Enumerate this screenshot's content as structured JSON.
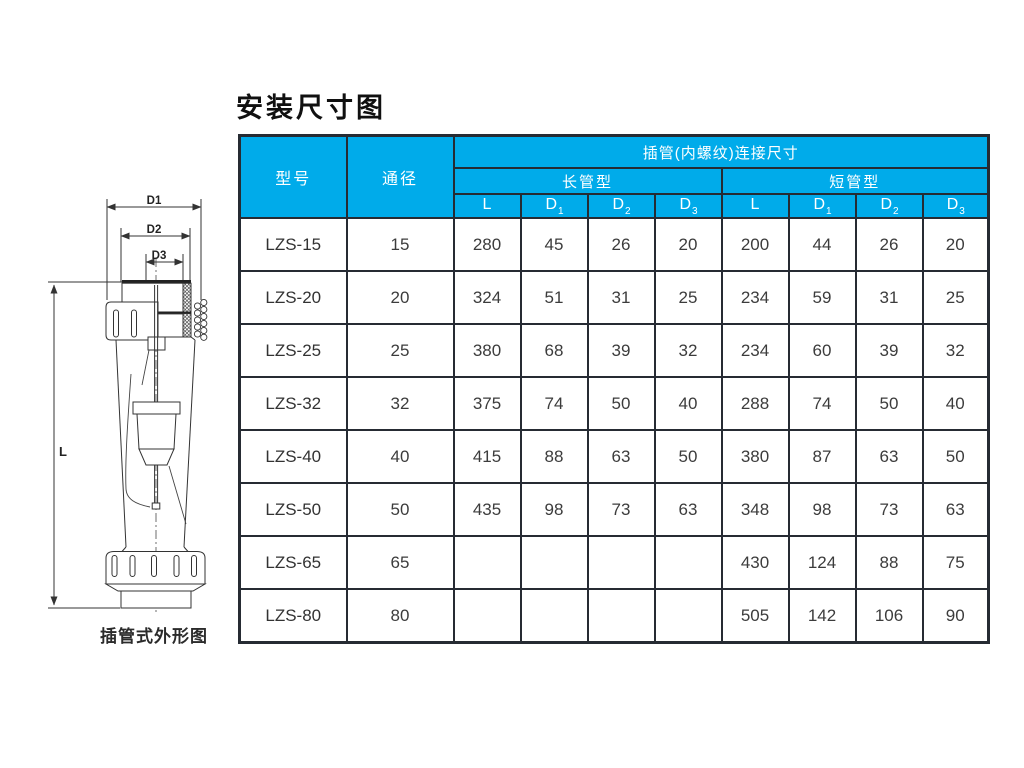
{
  "page": {
    "title": "安装尺寸图"
  },
  "drawing": {
    "caption": "插管式外形图",
    "dim_labels": {
      "d1": "D1",
      "d2": "D2",
      "d3": "D3",
      "length": "L"
    }
  },
  "table": {
    "header": {
      "model": "型号",
      "diameter": "通径",
      "group": "插管(内螺纹)连接尺寸",
      "long_type": "长管型",
      "short_type": "短管型",
      "dim_cols": [
        {
          "base": "L",
          "sub": ""
        },
        {
          "base": "D",
          "sub": "1"
        },
        {
          "base": "D",
          "sub": "2"
        },
        {
          "base": "D",
          "sub": "3"
        },
        {
          "base": "L",
          "sub": ""
        },
        {
          "base": "D",
          "sub": "1"
        },
        {
          "base": "D",
          "sub": "2"
        },
        {
          "base": "D",
          "sub": "3"
        }
      ]
    },
    "rows": [
      {
        "model": "LZS-15",
        "dn": "15",
        "long": [
          "280",
          "45",
          "26",
          "20"
        ],
        "short": [
          "200",
          "44",
          "26",
          "20"
        ]
      },
      {
        "model": "LZS-20",
        "dn": "20",
        "long": [
          "324",
          "51",
          "31",
          "25"
        ],
        "short": [
          "234",
          "59",
          "31",
          "25"
        ]
      },
      {
        "model": "LZS-25",
        "dn": "25",
        "long": [
          "380",
          "68",
          "39",
          "32"
        ],
        "short": [
          "234",
          "60",
          "39",
          "32"
        ]
      },
      {
        "model": "LZS-32",
        "dn": "32",
        "long": [
          "375",
          "74",
          "50",
          "40"
        ],
        "short": [
          "288",
          "74",
          "50",
          "40"
        ]
      },
      {
        "model": "LZS-40",
        "dn": "40",
        "long": [
          "415",
          "88",
          "63",
          "50"
        ],
        "short": [
          "380",
          "87",
          "63",
          "50"
        ]
      },
      {
        "model": "LZS-50",
        "dn": "50",
        "long": [
          "435",
          "98",
          "73",
          "63"
        ],
        "short": [
          "348",
          "98",
          "73",
          "63"
        ]
      },
      {
        "model": "LZS-65",
        "dn": "65",
        "long": [
          "",
          "",
          "",
          ""
        ],
        "short": [
          "430",
          "124",
          "88",
          "75"
        ]
      },
      {
        "model": "LZS-80",
        "dn": "80",
        "long": [
          "",
          "",
          "",
          ""
        ],
        "short": [
          "505",
          "142",
          "106",
          "90"
        ]
      }
    ]
  },
  "colors": {
    "header_blue": "#00ABEA",
    "border_dark": "#262B33",
    "cell_text": "#3C3C3C"
  }
}
